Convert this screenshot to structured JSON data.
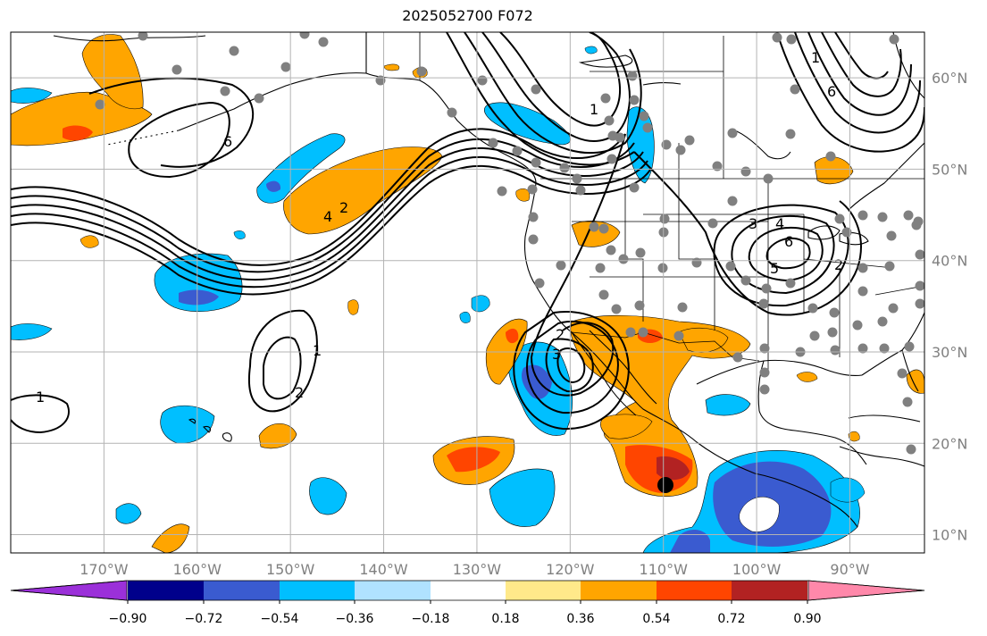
{
  "title": "2025052700 F072",
  "map": {
    "projection": "plate-carree",
    "lon_range": [
      -180,
      -82
    ],
    "lat_range": [
      8,
      65
    ],
    "grid": true
  },
  "lon_labels": [
    "170°W",
    "160°W",
    "150°W",
    "140°W",
    "130°W",
    "120°W",
    "110°W",
    "100°W",
    "90°W"
  ],
  "lat_labels": [
    "60°N",
    "50°N",
    "40°N",
    "30°N",
    "20°N",
    "10°N"
  ],
  "colorbar": {
    "ticks": [
      "−0.90",
      "−0.72",
      "−0.54",
      "−0.36",
      "−0.18",
      "0.18",
      "0.36",
      "0.54",
      "0.72",
      "0.90"
    ],
    "colors": [
      "#9b30d9",
      "#00008b",
      "#3a5bd0",
      "#00bfff",
      "#b0e2ff",
      "#ffffff",
      "#ffe98a",
      "#ffa500",
      "#ff4500",
      "#b22222",
      "#ff88aa"
    ],
    "extend": "both"
  },
  "contour_labels": [
    "1",
    "2",
    "6",
    "4",
    "2",
    "1",
    "2",
    "3",
    "1",
    "3",
    "4",
    "6",
    "5",
    "2",
    "1",
    "6"
  ],
  "colors": {
    "grid": "#b3b3b3",
    "coast": "#000000",
    "station": "#808080",
    "marker": "#000000"
  }
}
